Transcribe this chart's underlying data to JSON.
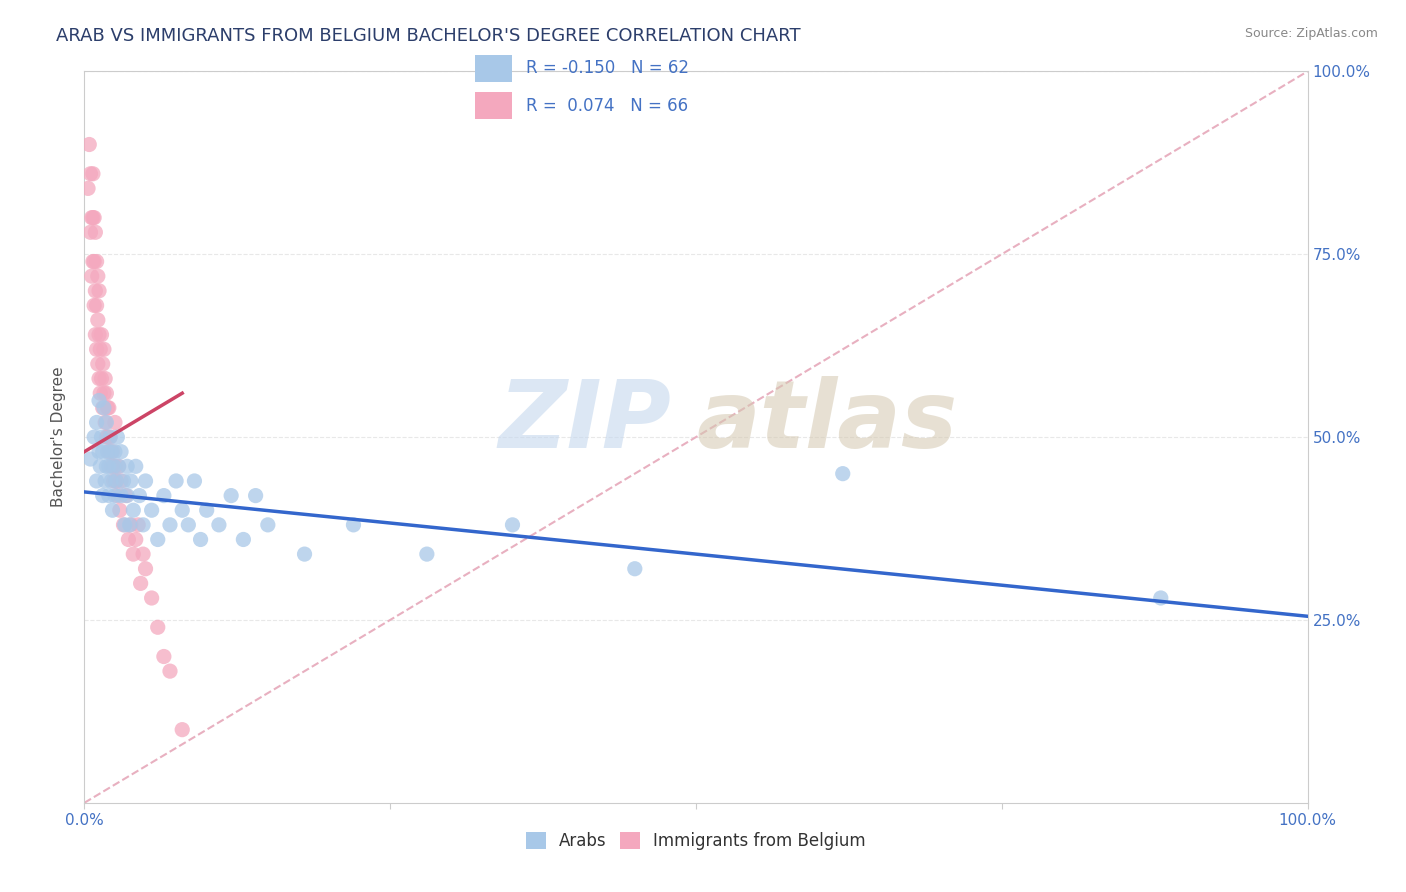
{
  "title": "ARAB VS IMMIGRANTS FROM BELGIUM BACHELOR'S DEGREE CORRELATION CHART",
  "source_text": "Source: ZipAtlas.com",
  "ylabel": "Bachelor's Degree",
  "xlim": [
    0.0,
    1.0
  ],
  "ylim": [
    0.0,
    1.0
  ],
  "x_ticks": [
    0.0,
    0.25,
    0.5,
    0.75,
    1.0
  ],
  "y_ticks": [
    0.25,
    0.5,
    0.75,
    1.0
  ],
  "x_tick_labels": [
    "0.0%",
    "",
    "",
    "",
    "100.0%"
  ],
  "y_tick_labels_right": [
    "25.0%",
    "50.0%",
    "75.0%",
    "100.0%"
  ],
  "arab_color": "#a8c8e8",
  "belgium_color": "#f4a8be",
  "arab_line_color": "#3366cc",
  "belgium_line_color": "#cc4466",
  "diagonal_color": "#e8b0c0",
  "R_arab": -0.15,
  "N_arab": 62,
  "R_belgium": 0.074,
  "N_belgium": 66,
  "arab_scatter_x": [
    0.005,
    0.008,
    0.01,
    0.01,
    0.012,
    0.012,
    0.013,
    0.014,
    0.015,
    0.015,
    0.016,
    0.017,
    0.018,
    0.018,
    0.019,
    0.02,
    0.02,
    0.021,
    0.022,
    0.022,
    0.023,
    0.024,
    0.025,
    0.025,
    0.026,
    0.027,
    0.028,
    0.03,
    0.03,
    0.032,
    0.033,
    0.035,
    0.035,
    0.037,
    0.038,
    0.04,
    0.042,
    0.045,
    0.048,
    0.05,
    0.055,
    0.06,
    0.065,
    0.07,
    0.075,
    0.08,
    0.085,
    0.09,
    0.095,
    0.1,
    0.11,
    0.12,
    0.13,
    0.14,
    0.15,
    0.18,
    0.22,
    0.28,
    0.35,
    0.45,
    0.62,
    0.88
  ],
  "arab_scatter_y": [
    0.47,
    0.5,
    0.52,
    0.44,
    0.48,
    0.55,
    0.46,
    0.5,
    0.42,
    0.48,
    0.54,
    0.44,
    0.46,
    0.52,
    0.48,
    0.42,
    0.46,
    0.5,
    0.44,
    0.48,
    0.4,
    0.46,
    0.42,
    0.48,
    0.44,
    0.5,
    0.46,
    0.42,
    0.48,
    0.44,
    0.38,
    0.46,
    0.42,
    0.38,
    0.44,
    0.4,
    0.46,
    0.42,
    0.38,
    0.44,
    0.4,
    0.36,
    0.42,
    0.38,
    0.44,
    0.4,
    0.38,
    0.44,
    0.36,
    0.4,
    0.38,
    0.42,
    0.36,
    0.42,
    0.38,
    0.34,
    0.38,
    0.34,
    0.38,
    0.32,
    0.45,
    0.28
  ],
  "belgium_scatter_x": [
    0.003,
    0.004,
    0.005,
    0.005,
    0.006,
    0.006,
    0.007,
    0.007,
    0.007,
    0.008,
    0.008,
    0.008,
    0.009,
    0.009,
    0.009,
    0.01,
    0.01,
    0.01,
    0.011,
    0.011,
    0.011,
    0.012,
    0.012,
    0.012,
    0.013,
    0.013,
    0.014,
    0.014,
    0.015,
    0.015,
    0.016,
    0.016,
    0.017,
    0.017,
    0.018,
    0.018,
    0.019,
    0.019,
    0.02,
    0.02,
    0.021,
    0.022,
    0.023,
    0.024,
    0.025,
    0.025,
    0.026,
    0.027,
    0.028,
    0.029,
    0.03,
    0.032,
    0.034,
    0.036,
    0.038,
    0.04,
    0.042,
    0.044,
    0.046,
    0.048,
    0.05,
    0.055,
    0.06,
    0.065,
    0.07,
    0.08
  ],
  "belgium_scatter_y": [
    0.84,
    0.9,
    0.78,
    0.86,
    0.72,
    0.8,
    0.74,
    0.8,
    0.86,
    0.68,
    0.74,
    0.8,
    0.64,
    0.7,
    0.78,
    0.62,
    0.68,
    0.74,
    0.6,
    0.66,
    0.72,
    0.58,
    0.64,
    0.7,
    0.56,
    0.62,
    0.58,
    0.64,
    0.54,
    0.6,
    0.56,
    0.62,
    0.52,
    0.58,
    0.5,
    0.56,
    0.5,
    0.54,
    0.48,
    0.54,
    0.5,
    0.46,
    0.48,
    0.44,
    0.46,
    0.52,
    0.44,
    0.42,
    0.46,
    0.4,
    0.44,
    0.38,
    0.42,
    0.36,
    0.38,
    0.34,
    0.36,
    0.38,
    0.3,
    0.34,
    0.32,
    0.28,
    0.24,
    0.2,
    0.18,
    0.1
  ],
  "arab_trend_x": [
    0.0,
    1.0
  ],
  "arab_trend_y": [
    0.425,
    0.255
  ],
  "belgium_trend_x": [
    0.0,
    0.08
  ],
  "belgium_trend_y": [
    0.48,
    0.56
  ],
  "background_color": "#ffffff",
  "grid_color": "#e8e8e8",
  "title_fontsize": 13,
  "axis_label_fontsize": 11,
  "tick_fontsize": 11,
  "legend_fontsize": 13,
  "title_color": "#2c3e6b",
  "axis_label_color": "#555555",
  "tick_color": "#4472c4",
  "source_color": "#888888"
}
